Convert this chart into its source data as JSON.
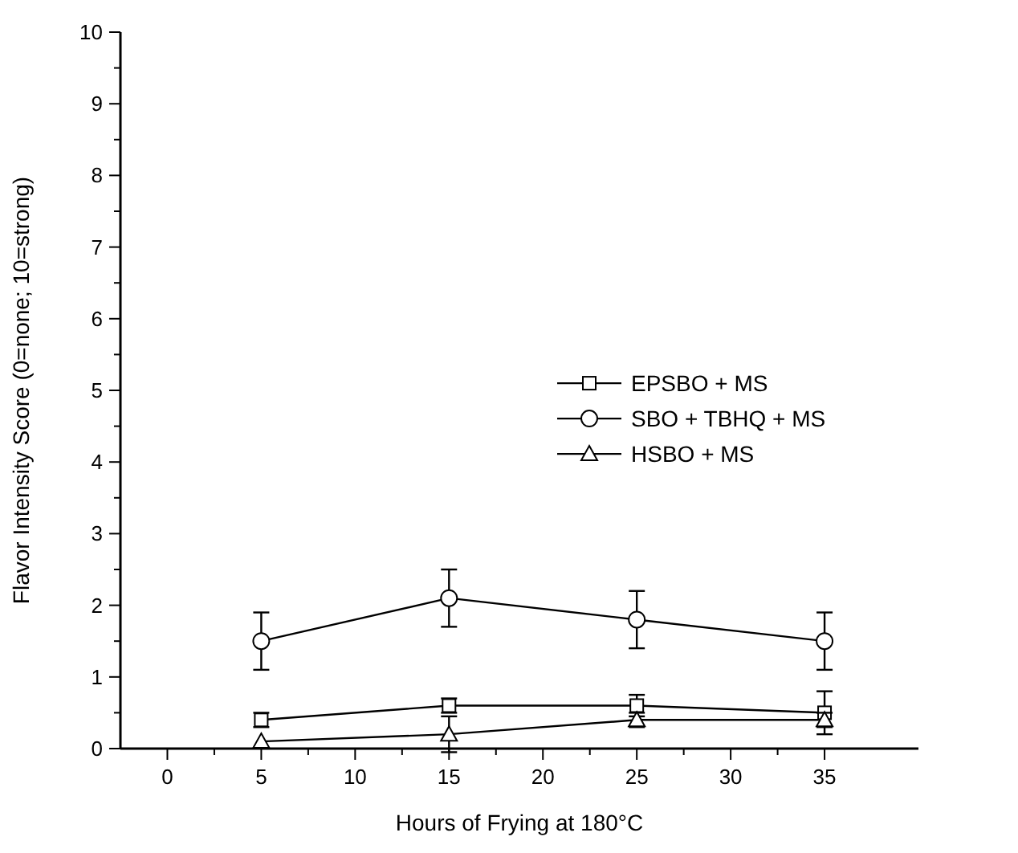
{
  "chart_data": {
    "type": "line",
    "xlabel": "Hours of Frying at 180°C",
    "ylabel": "Flavor Intensity Score (0=none; 10=strong)",
    "x": [
      5,
      15,
      25,
      35
    ],
    "xlim": [
      -2.5,
      40
    ],
    "xticks": [
      0,
      5,
      10,
      15,
      20,
      25,
      30,
      35
    ],
    "ylim": [
      0,
      10
    ],
    "yticks": [
      0,
      1,
      2,
      3,
      4,
      5,
      6,
      7,
      8,
      9,
      10
    ],
    "series": [
      {
        "name": "EPSBO + MS",
        "color": "#000000",
        "marker": "square",
        "values": [
          0.4,
          0.6,
          0.6,
          0.5
        ],
        "errors": [
          0.1,
          0.1,
          0.15,
          0.3
        ]
      },
      {
        "name": "SBO + TBHQ + MS",
        "color": "#000000",
        "marker": "circle",
        "values": [
          1.5,
          2.1,
          1.8,
          1.5
        ],
        "errors": [
          0.4,
          0.4,
          0.4,
          0.4
        ]
      },
      {
        "name": "HSBO + MS",
        "color": "#000000",
        "marker": "triangle",
        "values": [
          0.1,
          0.2,
          0.4,
          0.4
        ],
        "errors": [
          null,
          0.25,
          0.1,
          0.1
        ]
      }
    ],
    "legend": "right",
    "grid": false,
    "line_style": "solid"
  }
}
